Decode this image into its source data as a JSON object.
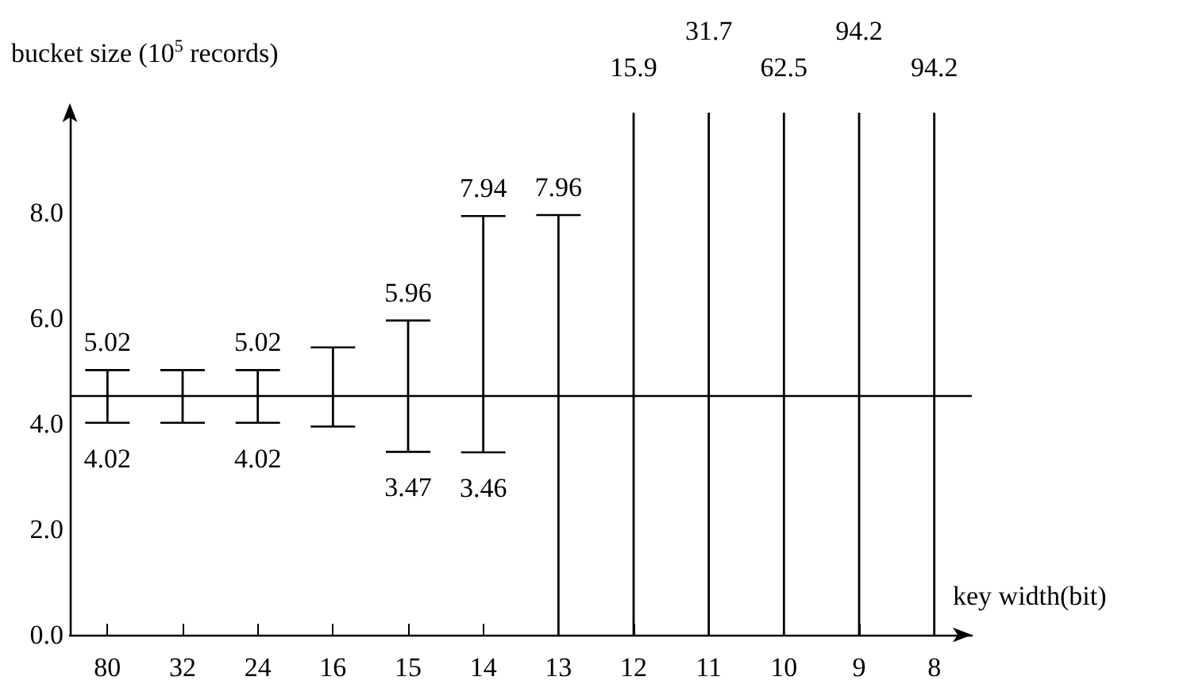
{
  "chart_data": {
    "type": "bar",
    "xlabel": "key width(bit)",
    "ylabel": "bucket size (10$^{5}$ records)",
    "categories": [
      "80",
      "32",
      "24",
      "16",
      "15",
      "14",
      "13",
      "12",
      "11",
      "10",
      "9",
      "8"
    ],
    "base": [
      4.02,
      4.02,
      4.02,
      3.95,
      3.47,
      3.46,
      0,
      0,
      0,
      0,
      0,
      0
    ],
    "values": [
      1.0,
      1.0,
      1.0,
      1.5,
      2.49,
      4.48,
      7.96,
      15.9,
      31.7,
      62.5,
      94.2,
      94.2
    ],
    "value_labels": [
      "5.02",
      null,
      "5.02",
      null,
      "5.96",
      "7.94",
      "7.96",
      "15.9",
      "31.7",
      "62.5",
      "94.2",
      "94.2"
    ],
    "color": "#000000",
    "ylim": [
      0,
      9.9
    ],
    "yticks": [
      {
        "value": 0,
        "label": "0.0"
      },
      {
        "value": 2,
        "label": "2.0"
      },
      {
        "value": 4,
        "label": "4.0"
      },
      {
        "value": 6,
        "label": "6.0"
      },
      {
        "value": 8,
        "label": "8.0"
      }
    ],
    "ref_lines": [
      {
        "axis": "y",
        "value": 4.55,
        "label": null,
        "color": "#000000"
      }
    ],
    "annotations": [
      {
        "text": "4.02",
        "x": "80",
        "y": 4.02
      },
      {
        "text": "4.02",
        "x": "24",
        "y": 4.02
      },
      {
        "text": "3.47",
        "x": "15",
        "y": 3.47
      },
      {
        "text": "3.46",
        "x": "14",
        "y": 3.46
      }
    ],
    "grid": false
  }
}
